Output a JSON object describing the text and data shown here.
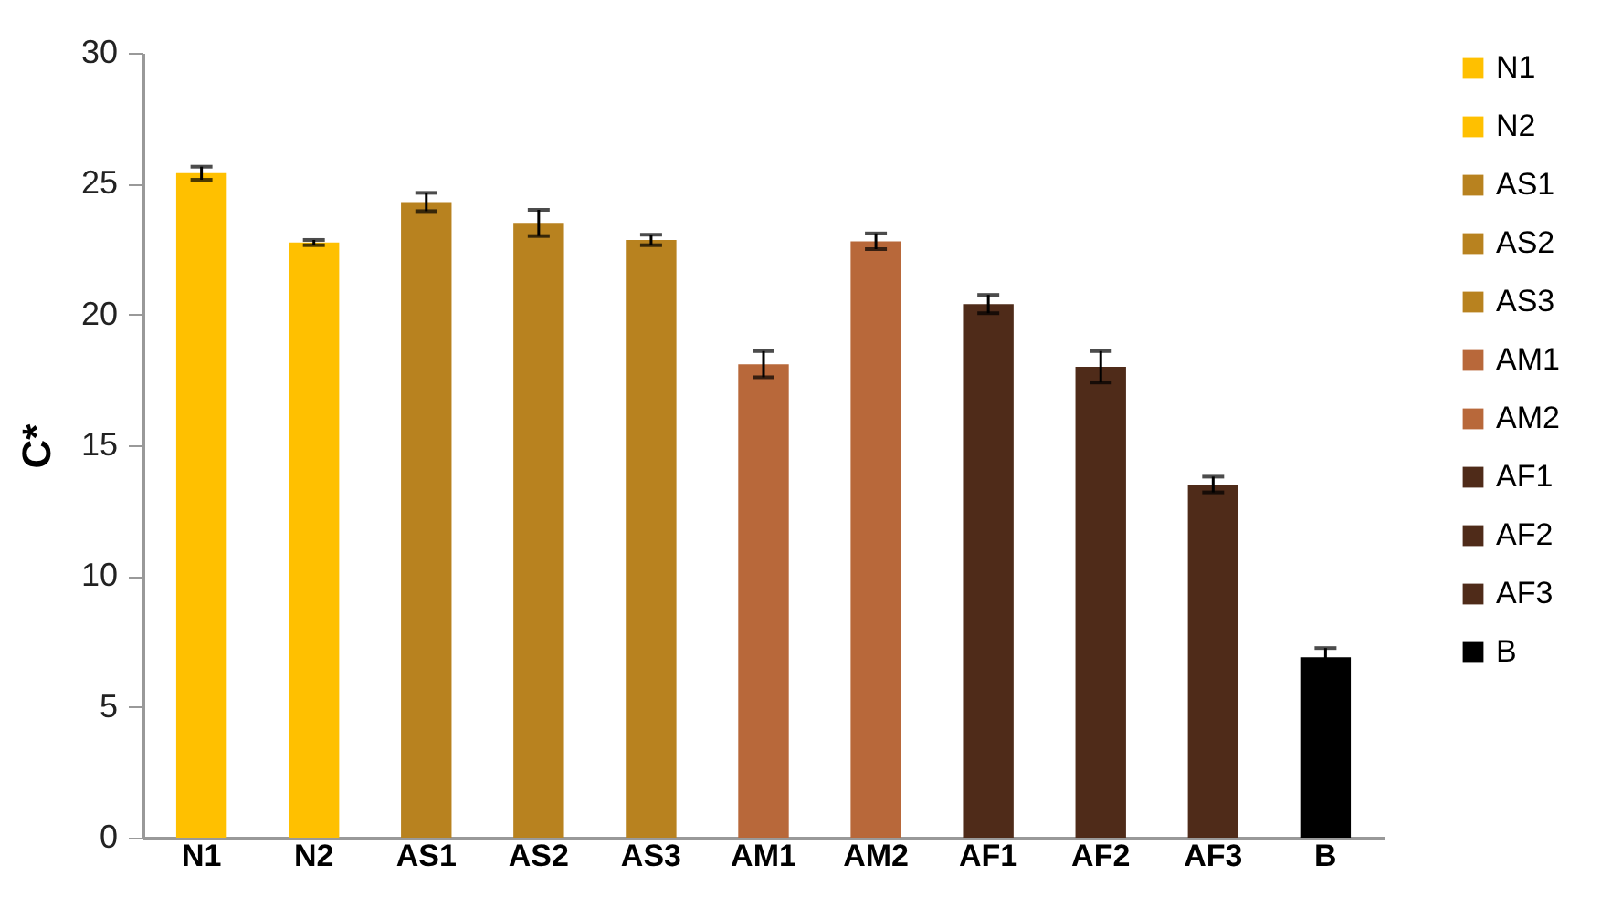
{
  "chart_data": {
    "type": "bar",
    "ylabel": "C*",
    "categories": [
      "N1",
      "N2",
      "AS1",
      "AS2",
      "AS3",
      "AM1",
      "AM2",
      "AF1",
      "AF2",
      "AF3",
      "B"
    ],
    "series": [
      {
        "name": "N1",
        "color": "#ffc000",
        "values": [
          25.4,
          null,
          null,
          null,
          null,
          null,
          null,
          null,
          null,
          null,
          null
        ],
        "errors": [
          0.25,
          null,
          null,
          null,
          null,
          null,
          null,
          null,
          null,
          null,
          null
        ]
      },
      {
        "name": "N2",
        "color": "#ffc000",
        "values": [
          null,
          22.75,
          null,
          null,
          null,
          null,
          null,
          null,
          null,
          null,
          null
        ],
        "errors": [
          null,
          0.1,
          null,
          null,
          null,
          null,
          null,
          null,
          null,
          null,
          null
        ]
      },
      {
        "name": "AS1",
        "color": "#b8821f",
        "values": [
          null,
          null,
          24.3,
          null,
          null,
          null,
          null,
          null,
          null,
          null,
          null
        ],
        "errors": [
          null,
          null,
          0.35,
          null,
          null,
          null,
          null,
          null,
          null,
          null,
          null
        ]
      },
      {
        "name": "AS2",
        "color": "#b8821f",
        "values": [
          null,
          null,
          null,
          23.5,
          null,
          null,
          null,
          null,
          null,
          null,
          null
        ],
        "errors": [
          null,
          null,
          null,
          0.5,
          null,
          null,
          null,
          null,
          null,
          null,
          null
        ]
      },
      {
        "name": "AS3",
        "color": "#b8821f",
        "values": [
          null,
          null,
          null,
          null,
          22.85,
          null,
          null,
          null,
          null,
          null,
          null
        ],
        "errors": [
          null,
          null,
          null,
          null,
          0.2,
          null,
          null,
          null,
          null,
          null,
          null
        ]
      },
      {
        "name": "AM1",
        "color": "#b8683a",
        "values": [
          null,
          null,
          null,
          null,
          null,
          18.1,
          null,
          null,
          null,
          null,
          null
        ],
        "errors": [
          null,
          null,
          null,
          null,
          null,
          0.5,
          null,
          null,
          null,
          null,
          null
        ]
      },
      {
        "name": "AM2",
        "color": "#b8683a",
        "values": [
          null,
          null,
          null,
          null,
          null,
          null,
          22.8,
          null,
          null,
          null,
          null
        ],
        "errors": [
          null,
          null,
          null,
          null,
          null,
          null,
          0.3,
          null,
          null,
          null,
          null
        ]
      },
      {
        "name": "AF1",
        "color": "#4f2b19",
        "values": [
          null,
          null,
          null,
          null,
          null,
          null,
          null,
          20.4,
          null,
          null,
          null
        ],
        "errors": [
          null,
          null,
          null,
          null,
          null,
          null,
          null,
          0.35,
          null,
          null,
          null
        ]
      },
      {
        "name": "AF2",
        "color": "#4f2b19",
        "values": [
          null,
          null,
          null,
          null,
          null,
          null,
          null,
          null,
          18.0,
          null,
          null
        ],
        "errors": [
          null,
          null,
          null,
          null,
          null,
          null,
          null,
          null,
          0.6,
          null,
          null
        ]
      },
      {
        "name": "AF3",
        "color": "#4f2b19",
        "values": [
          null,
          null,
          null,
          null,
          null,
          null,
          null,
          null,
          null,
          13.5,
          null
        ],
        "errors": [
          null,
          null,
          null,
          null,
          null,
          null,
          null,
          null,
          null,
          0.3,
          null
        ]
      },
      {
        "name": "B",
        "color": "#000000",
        "values": [
          null,
          null,
          null,
          null,
          null,
          null,
          null,
          null,
          null,
          null,
          6.9
        ],
        "errors": [
          null,
          null,
          null,
          null,
          null,
          null,
          null,
          null,
          null,
          null,
          0.35
        ]
      }
    ],
    "ylim": [
      0,
      30
    ],
    "yticks": [
      0,
      5,
      10,
      15,
      20,
      25,
      30
    ],
    "grid": false,
    "legend": "right"
  }
}
